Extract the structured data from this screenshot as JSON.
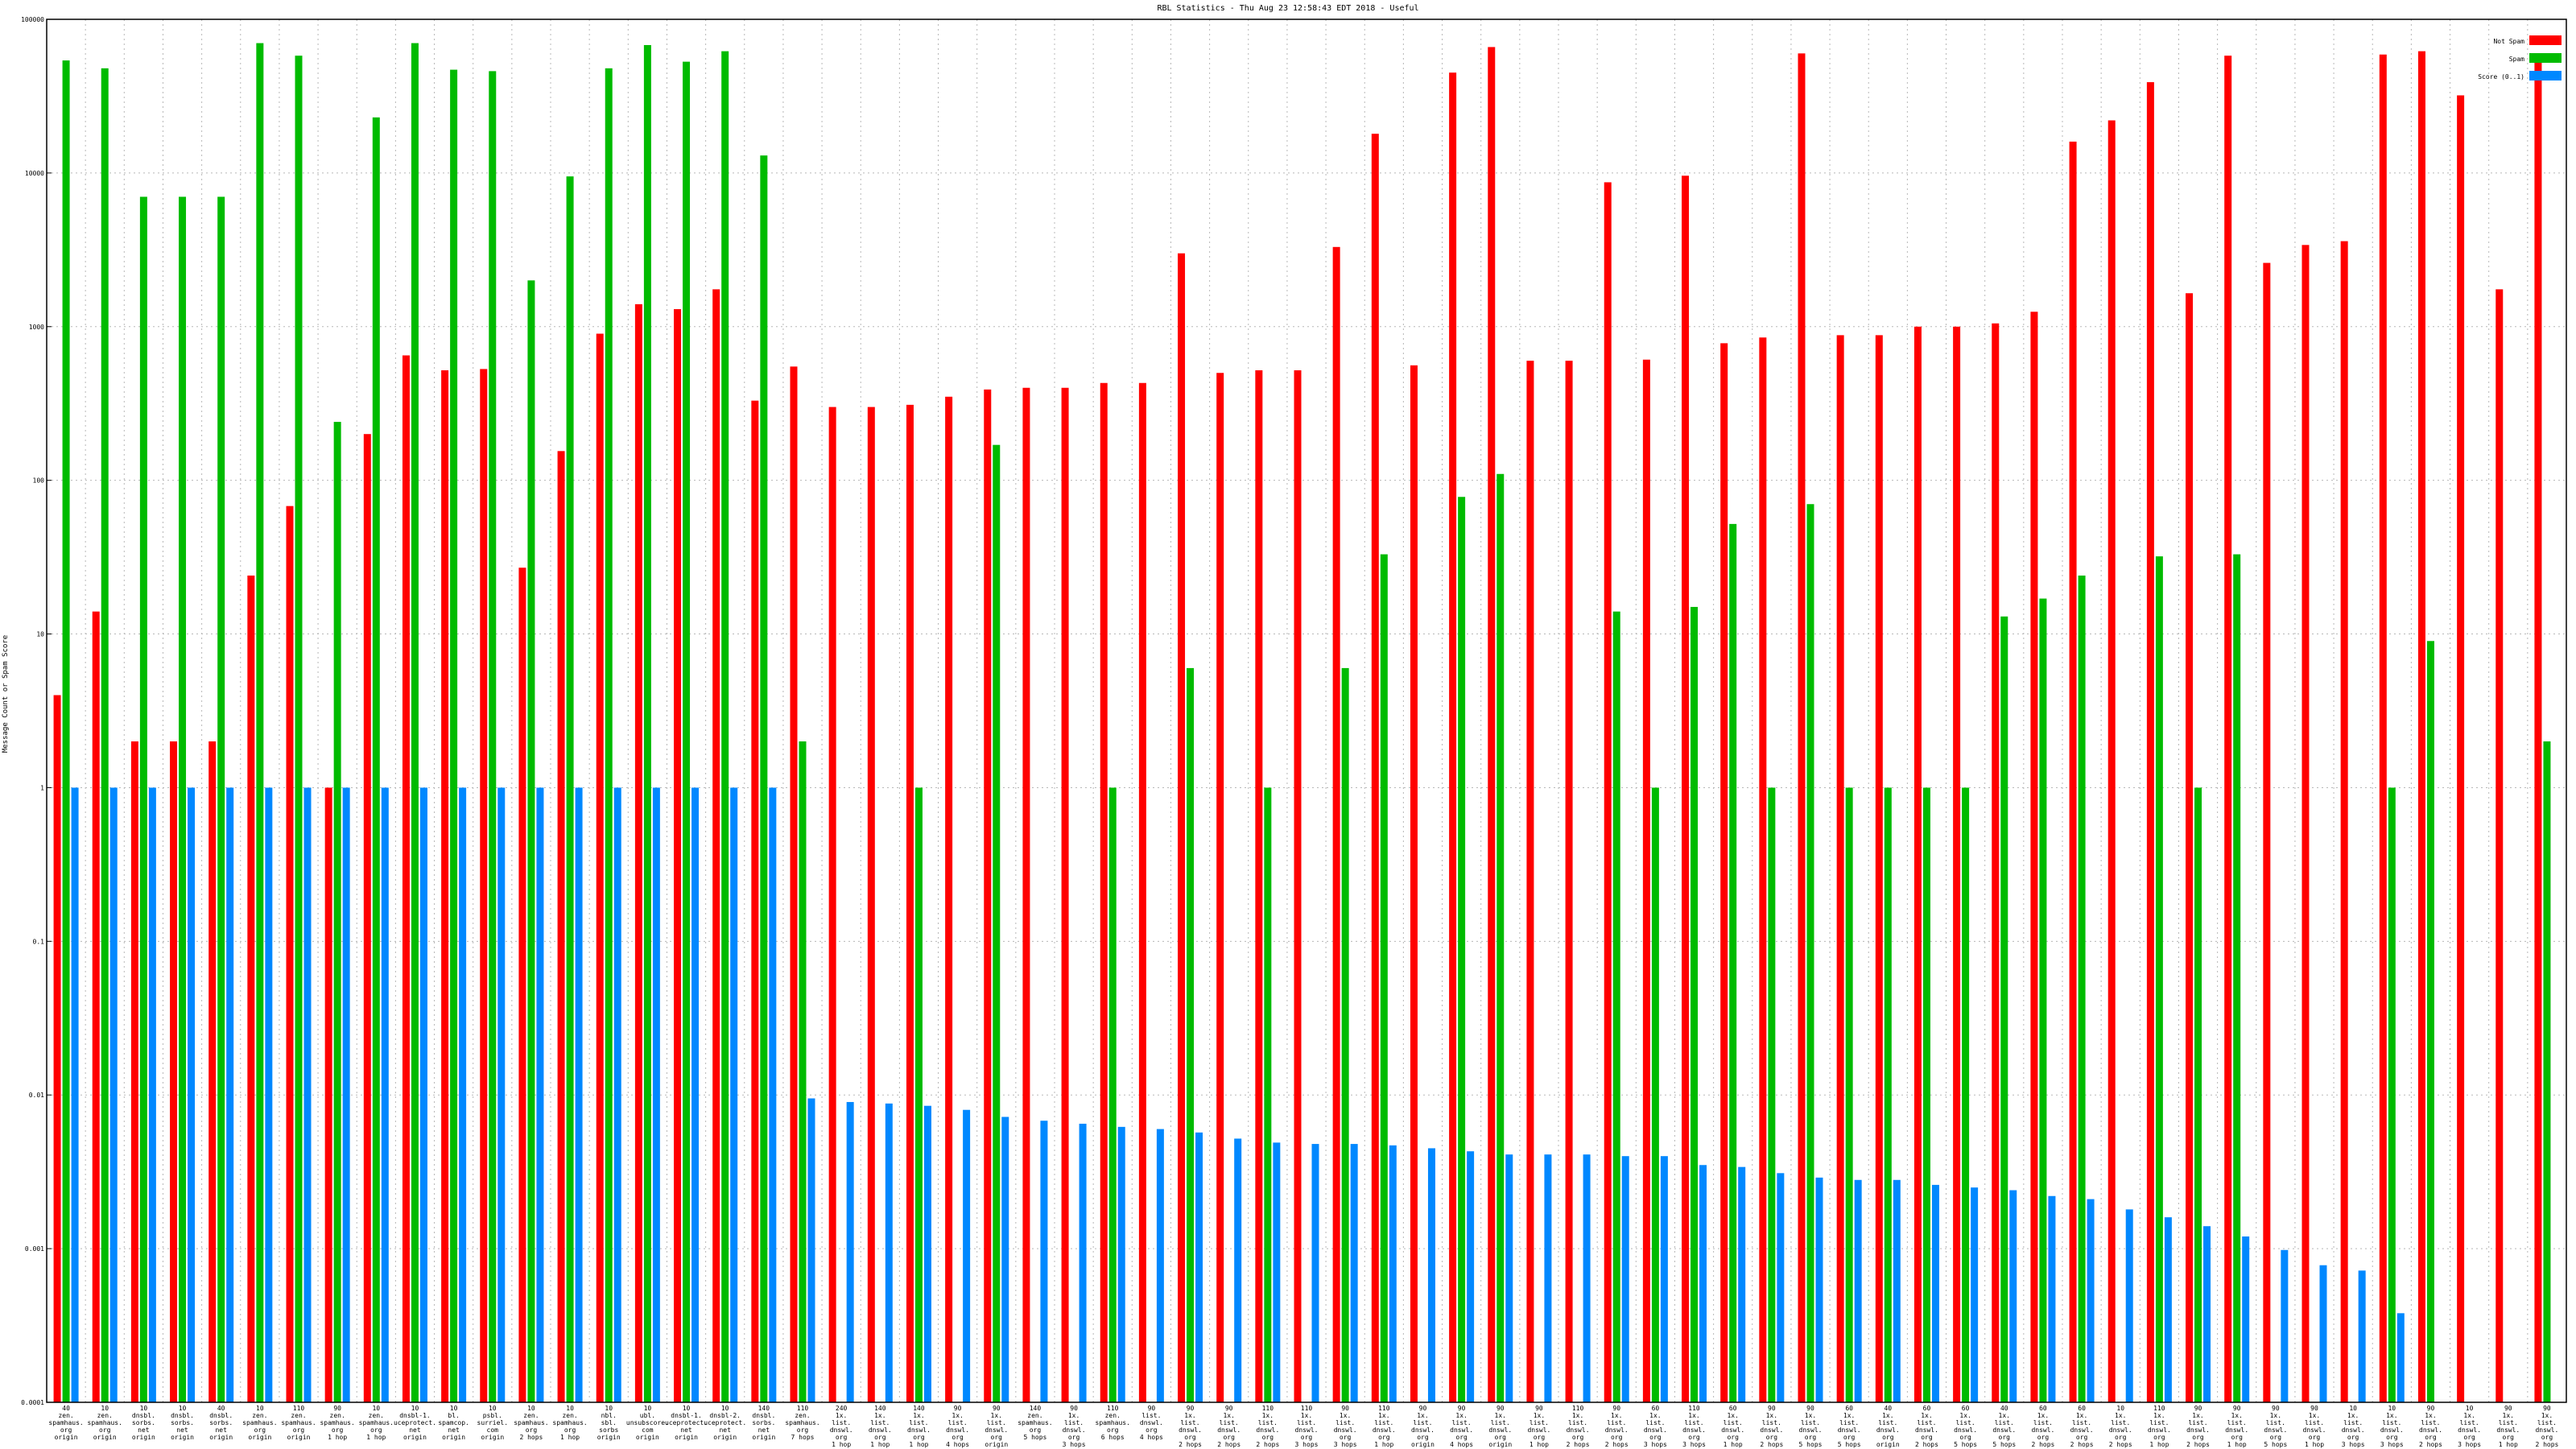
{
  "chart_data": {
    "type": "bar",
    "title": "RBL Statistics - Thu Aug 23 12:58:43 EDT 2018 - Useful",
    "ylabel": "Message Count or Spam Score",
    "xlabel": "",
    "yscale": "log",
    "ylim": [
      0.0001,
      100000
    ],
    "ytick_labels": [
      "0.0001",
      "0.001",
      "0.01",
      "0.1",
      "1",
      "10",
      "100",
      "1000",
      "10000",
      "100000"
    ],
    "grid": true,
    "legend_position": "top-right",
    "legend_labels": [
      "Not Spam",
      "Spam",
      "Score (0..1)"
    ],
    "series": [
      {
        "name": "Not Spam",
        "color": "#ff0000",
        "values": [
          4,
          14,
          2,
          2,
          2,
          24,
          68,
          1,
          200,
          650,
          520,
          530,
          27,
          155,
          900,
          1400,
          1300,
          1750,
          330,
          550,
          300,
          300,
          310,
          350,
          390,
          400,
          400,
          430,
          430,
          3000,
          500,
          520,
          520,
          3300,
          18000,
          560,
          45000,
          66000,
          600,
          600,
          8700,
          610,
          9600,
          780,
          850,
          60000,
          880,
          880,
          1000,
          1000,
          1050,
          1250,
          16000,
          22000,
          39000,
          1650,
          58000,
          2600,
          3400,
          3600,
          59000,
          62000,
          32000,
          1750,
          55000
        ]
      },
      {
        "name": "Spam",
        "color": "#00bb00",
        "values": [
          54000,
          48000,
          7000,
          7000,
          7000,
          70000,
          58000,
          240,
          23000,
          70000,
          47000,
          46000,
          2000,
          9500,
          48000,
          68000,
          53000,
          62000,
          13000,
          2,
          null,
          null,
          1,
          null,
          170,
          null,
          null,
          1,
          null,
          6,
          null,
          1,
          null,
          6,
          33,
          null,
          78,
          110,
          null,
          null,
          14,
          1,
          15,
          52,
          1,
          70,
          1,
          1,
          1,
          1,
          13,
          17,
          24,
          null,
          32,
          1,
          33,
          null,
          null,
          null,
          1,
          9,
          null,
          null,
          2
        ]
      },
      {
        "name": "Score (0..1)",
        "color": "#0088ff",
        "values": [
          1,
          1,
          1,
          1,
          1,
          1,
          1,
          1,
          1,
          1,
          1,
          1,
          1,
          1,
          1,
          1,
          1,
          1,
          1,
          0.0095,
          0.009,
          0.0088,
          0.0085,
          0.008,
          0.0072,
          0.0068,
          0.0065,
          0.0062,
          0.006,
          0.0057,
          0.0052,
          0.0049,
          0.0048,
          0.0048,
          0.0047,
          0.0045,
          0.0043,
          0.0041,
          0.0041,
          0.0041,
          0.004,
          0.004,
          0.0035,
          0.0034,
          0.0031,
          0.0029,
          0.0028,
          0.0028,
          0.0026,
          0.0025,
          0.0024,
          0.0022,
          0.0021,
          0.0018,
          0.0016,
          0.0014,
          0.0012,
          0.00098,
          0.00078,
          0.00072,
          0.00038,
          null,
          null,
          null,
          null
        ]
      }
    ],
    "categories": [
      "40\nzen.\nspamhaus.\norg\norigin",
      "10\nzen.\nspamhaus.\norg\norigin",
      "10\ndnsbl.\nsorbs.\nnet\norigin",
      "10\ndnsbl.\nsorbs.\nnet\norigin",
      "40\ndnsbl.\nsorbs.\nnet\norigin",
      "10\nzen.\nspamhaus.\norg\norigin",
      "110\nzen.\nspamhaus.\norg\norigin",
      "90\nzen.\nspamhaus.\norg\n1 hop",
      "10\nzen.\nspamhaus.\norg\n1 hop",
      "10\ndnsbl-1.\nuceprotect.\nnet\norigin",
      "10\nbl.\nspamcop.\nnet\norigin",
      "10\npsbl.\nsurriel.\ncom\norigin",
      "10\nzen.\nspamhaus.\norg\n2 hops",
      "10\nzen.\nspamhaus.\norg\n1 hop",
      "10\nnbl.\nsbl.\nsorbs\norigin",
      "10\nubl.\nunsubscore.\ncom\norigin",
      "10\ndnsbl-1.\nuceprotect.\nnet\norigin",
      "10\ndnsbl-2.\nuceprotect.\nnet\norigin",
      "140\ndnsbl.\nsorbs.\nnet\norigin",
      "110\nzen.\nspamhaus.\norg\n7 hops",
      "240\n1x.\nlist.\ndnswl.\norg\n1 hop",
      "140\n1x.\nlist.\ndnswl.\norg\n1 hop",
      "140\n1x.\nlist.\ndnswl.\norg\n1 hop",
      "90\n1x.\nlist.\ndnswl.\norg\n4 hops",
      "90\n1x.\nlist.\ndnswl.\norg\norigin",
      "140\nzen.\nspamhaus.\norg\n5 hops",
      "90\n1x.\nlist.\ndnswl.\norg\n3 hops",
      "110\nzen.\nspamhaus.\norg\n6 hops",
      "90\nlist.\ndnswl.\norg\n4 hops",
      "90\n1x.\nlist.\ndnswl.\norg\n2 hops",
      "90\n1x.\nlist.\ndnswl.\norg\n2 hops",
      "110\n1x.\nlist.\ndnswl.\norg\n2 hops",
      "110\n1x.\nlist.\ndnswl.\norg\n3 hops",
      "90\n1x.\nlist.\ndnswl.\norg\n3 hops",
      "110\n1x.\nlist.\ndnswl.\norg\n1 hop",
      "90\n1x.\nlist.\ndnswl.\norg\norigin",
      "90\n1x.\nlist.\ndnswl.\norg\n4 hops",
      "90\n1x.\nlist.\ndnswl.\norg\norigin",
      "90\n1x.\nlist.\ndnswl.\norg\n1 hop",
      "110\n1x.\nlist.\ndnswl.\norg\n2 hops",
      "90\n1x.\nlist.\ndnswl.\norg\n2 hops",
      "60\n1x.\nlist.\ndnswl.\norg\n3 hops",
      "110\n1x.\nlist.\ndnswl.\norg\n3 hops",
      "60\n1x.\nlist.\ndnswl.\norg\n1 hop",
      "90\n1x.\nlist.\ndnswl.\norg\n2 hops",
      "90\n1x.\nlist.\ndnswl.\norg\n5 hops",
      "60\n1x.\nlist.\ndnswl.\norg\n5 hops",
      "40\n1x.\nlist.\ndnswl.\norg\norigin",
      "60\n1x.\nlist.\ndnswl.\norg\n2 hops",
      "60\n1x.\nlist.\ndnswl.\norg\n5 hops",
      "40\n1x.\nlist.\ndnswl.\norg\n5 hops",
      "60\n1x.\nlist.\ndnswl.\norg\n2 hops",
      "60\n1x.\nlist.\ndnswl.\norg\n2 hops",
      "10\n1x.\nlist.\ndnswl.\norg\n2 hops",
      "110\n1x.\nlist.\ndnswl.\norg\n1 hop",
      "90\n1x.\nlist.\ndnswl.\norg\n2 hops",
      "90\n1x.\nlist.\ndnswl.\norg\n1 hop",
      "90\n1x.\nlist.\ndnswl.\norg\n5 hops",
      "90\n1x.\nlist.\ndnswl.\norg\n1 hop",
      "10\n1x.\nlist.\ndnswl.\norg\n3 hops",
      "10\n1x.\nlist.\ndnswl.\norg\n3 hops",
      "90\n1x.\nlist.\ndnswl.\norg\n2 hops",
      "10\n1x.\nlist.\ndnswl.\norg\n3 hops",
      "90\n1x.\nlist.\ndnswl.\norg\n1 hop",
      "90\n1x.\nlist.\ndnswl.\norg\n2 hops"
    ]
  }
}
